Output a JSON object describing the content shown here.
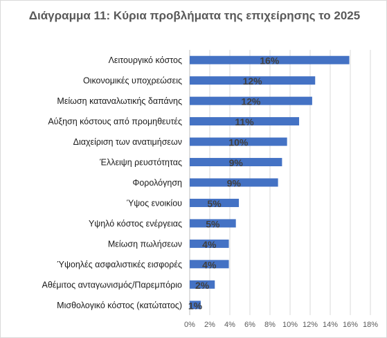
{
  "chart_data": {
    "type": "bar",
    "orientation": "horizontal",
    "title": "Διάγραμμα 11: Κύρια προβλήματα της επιχείρησης το 2025",
    "categories": [
      "Λειτουργικό κόστος",
      "Οικονομικές υποχρεώσεις",
      "Μείωση καταναλωτικής δαπάνης",
      "Αύξηση κόστους από προμηθευτές",
      "Διαχείριση των ανατιμήσεων",
      "Έλλειψη ρευστότητας",
      "Φορολόγηση",
      "Ύψος ενοικίου",
      "Υψηλό κόστος ενέργειας",
      "Μείωση πωλήσεων",
      "Ύψοηλές ασφαλιστικές εισφορές",
      "Αθέμιτος ανταγωνισμός/Παρεμπόριο",
      "Μισθολογικό κόστος (κατώτατος)"
    ],
    "values": [
      15.9,
      12.5,
      12.2,
      10.9,
      9.7,
      9.2,
      8.8,
      4.9,
      4.6,
      3.9,
      3.9,
      2.5,
      1.1
    ],
    "data_labels": [
      "16%",
      "12%",
      "12%",
      "11%",
      "10%",
      "9%",
      "9%",
      "5%",
      "5%",
      "4%",
      "4%",
      "2%",
      "1%"
    ],
    "xlim": [
      0,
      18
    ],
    "xticks": [
      0,
      2,
      4,
      6,
      8,
      10,
      12,
      14,
      16,
      18
    ],
    "xtick_labels": [
      "0%",
      "2%",
      "4%",
      "6%",
      "8%",
      "10%",
      "12%",
      "14%",
      "16%",
      "18%"
    ],
    "grid": true,
    "legend": "none",
    "bar_color": "#4472c4",
    "grid_color": "#d9d9d9"
  }
}
